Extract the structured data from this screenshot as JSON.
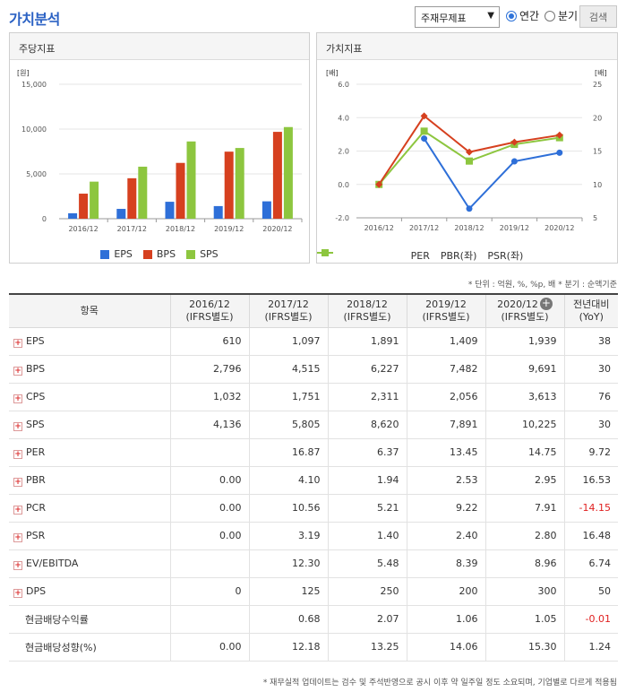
{
  "header": {
    "title": "가치분석",
    "select_value": "주재무제표",
    "radio_annual": "연간",
    "radio_quarter": "분기",
    "search_button": "검색"
  },
  "left_panel": {
    "title": "주당지표"
  },
  "right_panel": {
    "title": "가치지표"
  },
  "colors": {
    "eps": "#2e6fd8",
    "bps": "#d6401f",
    "sps": "#8dc63f",
    "per": "#2e6fd8",
    "pbr": "#d6401f",
    "psr": "#8dc63f"
  },
  "chart_data": [
    {
      "type": "bar",
      "unit_label": "[원]",
      "categories": [
        "2016/12",
        "2017/12",
        "2018/12",
        "2019/12",
        "2020/12"
      ],
      "ylim": [
        0,
        15000
      ],
      "yticks": [
        "15,000",
        "10,000",
        "5,000",
        "0"
      ],
      "series": [
        {
          "name": "EPS",
          "values": [
            610,
            1097,
            1891,
            1409,
            1939
          ]
        },
        {
          "name": "BPS",
          "values": [
            2796,
            4515,
            6227,
            7482,
            9691
          ]
        },
        {
          "name": "SPS",
          "values": [
            4136,
            5805,
            8620,
            7891,
            10225
          ]
        }
      ],
      "legend_position": "bottom"
    },
    {
      "type": "line",
      "left_unit_label": "[배]",
      "right_unit_label": "[배]",
      "categories": [
        "2016/12",
        "2017/12",
        "2018/12",
        "2019/12",
        "2020/12"
      ],
      "ylim_left": [
        -2,
        6
      ],
      "ylim_right": [
        5,
        25
      ],
      "yticks_left": [
        "6.0",
        "4.0",
        "2.0",
        "0.0",
        "-2.0"
      ],
      "yticks_right": [
        "25",
        "20",
        "15",
        "10",
        "5"
      ],
      "series": [
        {
          "name": "PER",
          "axis": "right",
          "values": [
            null,
            16.87,
            6.37,
            13.45,
            14.75
          ]
        },
        {
          "name": "PBR(좌)",
          "axis": "left",
          "values": [
            0.0,
            4.1,
            1.94,
            2.53,
            2.95
          ]
        },
        {
          "name": "PSR(좌)",
          "axis": "left",
          "values": [
            0.0,
            3.19,
            1.4,
            2.4,
            2.8
          ]
        }
      ],
      "legend_position": "bottom"
    }
  ],
  "notes": "* 단위 : 억원, %, %p, 배    * 분기 : 순액기준",
  "table": {
    "headers": [
      "항목",
      "2016/12\n(IFRS별도)",
      "2017/12\n(IFRS별도)",
      "2018/12\n(IFRS별도)",
      "2019/12\n(IFRS별도)",
      "2020/12\n(IFRS별도)",
      "전년대비\n(YoY)"
    ],
    "rows": [
      {
        "label": "EPS",
        "expand": true,
        "values": [
          "610",
          "1,097",
          "1,891",
          "1,409",
          "1,939",
          "38"
        ]
      },
      {
        "label": "BPS",
        "expand": true,
        "values": [
          "2,796",
          "4,515",
          "6,227",
          "7,482",
          "9,691",
          "30"
        ]
      },
      {
        "label": "CPS",
        "expand": true,
        "values": [
          "1,032",
          "1,751",
          "2,311",
          "2,056",
          "3,613",
          "76"
        ]
      },
      {
        "label": "SPS",
        "expand": true,
        "values": [
          "4,136",
          "5,805",
          "8,620",
          "7,891",
          "10,225",
          "30"
        ]
      },
      {
        "label": "PER",
        "expand": true,
        "values": [
          "",
          "16.87",
          "6.37",
          "13.45",
          "14.75",
          "9.72"
        ]
      },
      {
        "label": "PBR",
        "expand": true,
        "values": [
          "0.00",
          "4.10",
          "1.94",
          "2.53",
          "2.95",
          "16.53"
        ]
      },
      {
        "label": "PCR",
        "expand": true,
        "values": [
          "0.00",
          "10.56",
          "5.21",
          "9.22",
          "7.91",
          "-14.15"
        ]
      },
      {
        "label": "PSR",
        "expand": true,
        "values": [
          "0.00",
          "3.19",
          "1.40",
          "2.40",
          "2.80",
          "16.48"
        ]
      },
      {
        "label": "EV/EBITDA",
        "expand": true,
        "values": [
          "",
          "12.30",
          "5.48",
          "8.39",
          "8.96",
          "6.74"
        ]
      },
      {
        "label": "DPS",
        "expand": true,
        "values": [
          "0",
          "125",
          "250",
          "200",
          "300",
          "50"
        ]
      },
      {
        "label": "현금배당수익률",
        "expand": false,
        "values": [
          "",
          "0.68",
          "2.07",
          "1.06",
          "1.05",
          "-0.01"
        ]
      },
      {
        "label": "현금배당성향(%)",
        "expand": false,
        "values": [
          "0.00",
          "12.18",
          "13.25",
          "14.06",
          "15.30",
          "1.24"
        ]
      }
    ]
  },
  "footnote": "* 재무실적 업데이트는 검수 및 주석반영으로 공시 이후 약 일주일 정도 소요되며, 기업별로 다르게 적용됨"
}
